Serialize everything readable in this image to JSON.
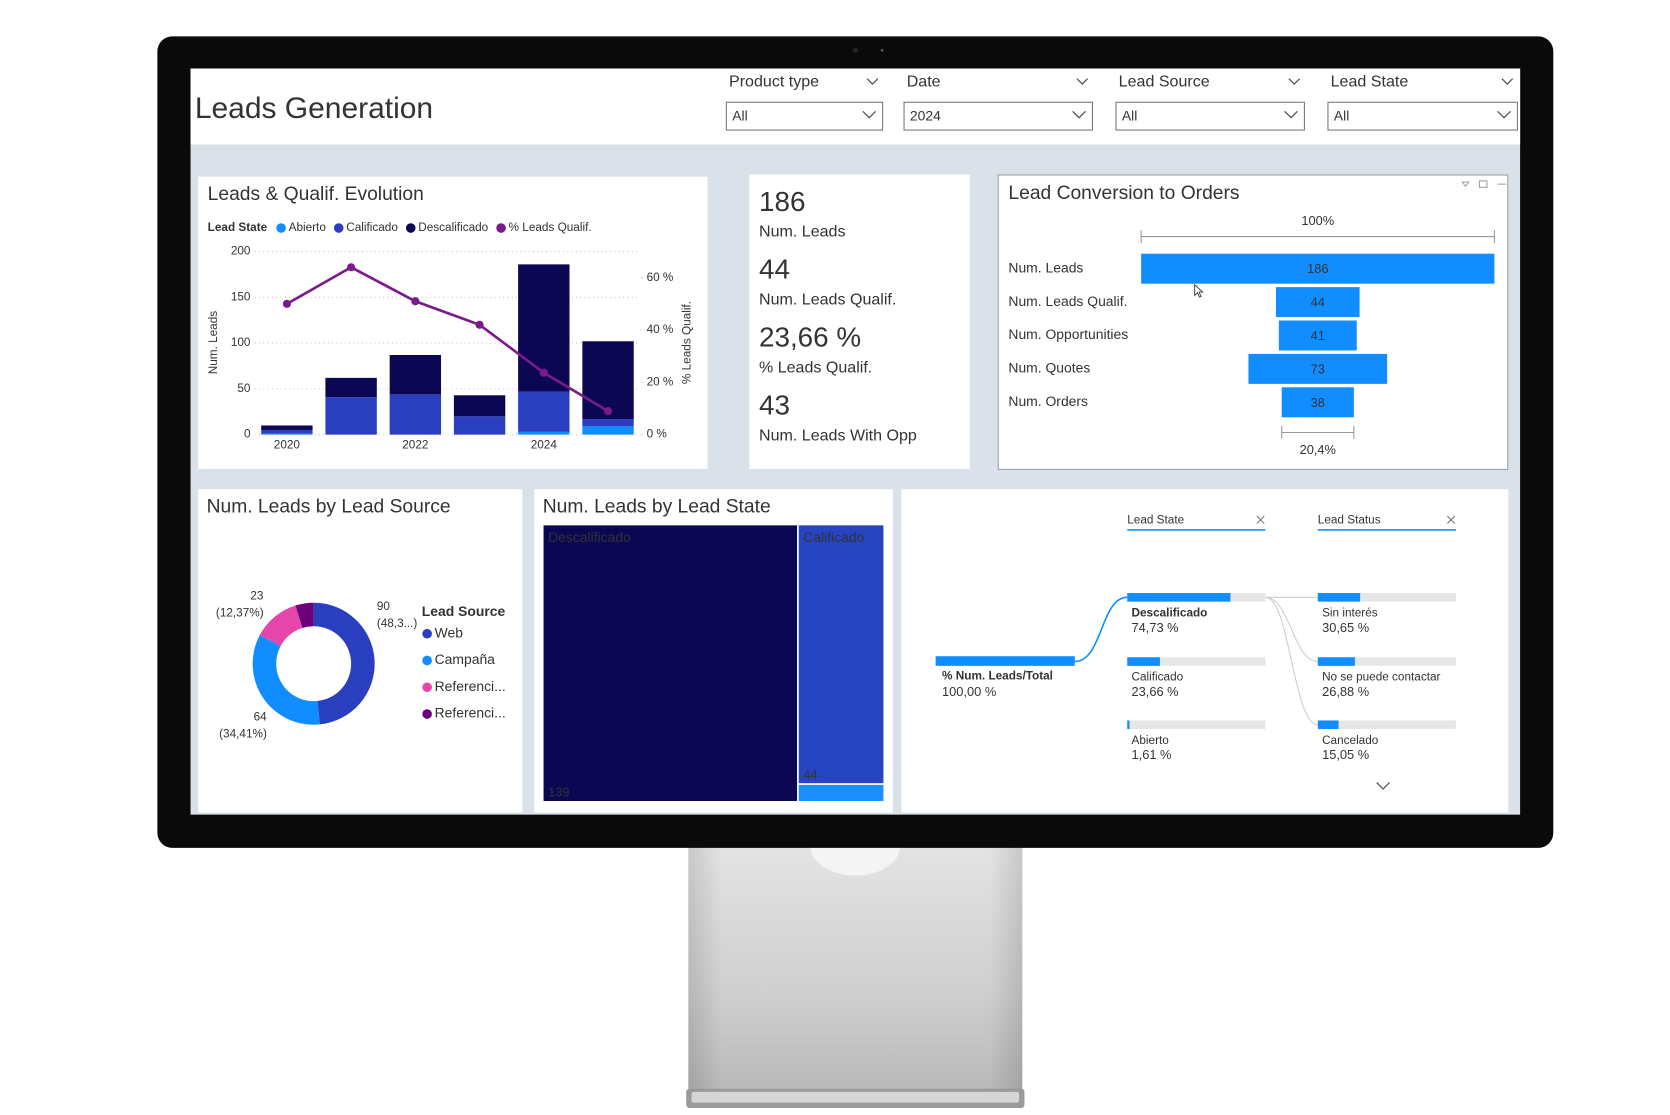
{
  "header": {
    "title": "Leads Generation"
  },
  "filters": [
    {
      "label": "Product type",
      "value": "All"
    },
    {
      "label": "Date",
      "value": "2024"
    },
    {
      "label": "Lead Source",
      "value": "All"
    },
    {
      "label": "Lead State",
      "value": "All"
    }
  ],
  "cards": [
    {
      "value": "186",
      "label": "Num. Leads"
    },
    {
      "value": "44",
      "label": "Num. Leads Qualif."
    },
    {
      "value": "23,66 %",
      "label": "% Leads Qualif."
    },
    {
      "value": "43",
      "label": "Num. Leads With Opp"
    }
  ],
  "chart_data": [
    {
      "type": "combo",
      "title": "Leads & Qualif. Evolution",
      "legend_title": "Lead State",
      "categories": [
        "2020",
        null,
        "2022",
        null,
        "2024",
        null
      ],
      "series": [
        {
          "name": "Abierto",
          "color": "#118dff",
          "values": [
            1,
            0,
            0,
            0,
            3,
            9
          ]
        },
        {
          "name": "Calificado",
          "color": "#2a3fbf",
          "values": [
            4,
            41,
            44,
            20,
            44,
            8
          ]
        },
        {
          "name": "Descalificado",
          "color": "#0c0752",
          "values": [
            5,
            21,
            43,
            23,
            139,
            85
          ]
        },
        {
          "name": "% Leads Qualif.",
          "color": "#7a1a8c",
          "axis": "y2",
          "values": [
            50,
            64,
            51,
            42,
            23.66,
            9
          ]
        }
      ],
      "ylabel": "Num. Leads",
      "y2label": "% Leads Qualif.",
      "ylim": [
        0,
        200
      ],
      "yticks": [
        0,
        50,
        100,
        150,
        200
      ],
      "y2lim": [
        0,
        70
      ],
      "y2ticks": [
        {
          "value": 0,
          "label": "0 %"
        },
        {
          "value": 20,
          "label": "20 %"
        },
        {
          "value": 40,
          "label": "40 %"
        },
        {
          "value": 60,
          "label": "60 %"
        }
      ],
      "grid": true
    },
    {
      "type": "funnel",
      "title": "Lead Conversion to Orders",
      "categories": [
        "Num. Leads",
        "Num. Leads Qualif.",
        "Num. Opportunities",
        "Num. Quotes",
        "Num. Orders"
      ],
      "values": [
        186,
        44,
        41,
        73,
        38
      ],
      "color": "#118dff",
      "top_label": "100%",
      "bottom_label": "20,4%"
    },
    {
      "type": "donut",
      "title": "Num. Leads by Lead Source",
      "legend_title": "Lead Source",
      "categories": [
        "Web",
        "Campaña",
        "Referenci...",
        "Referenci..."
      ],
      "values": [
        90,
        64,
        23,
        9
      ],
      "percent_labels": [
        "(48,3...)",
        "(34,41%)",
        "(12,37%)",
        null
      ],
      "colors": [
        "#2a3fbf",
        "#118dff",
        "#e645ab",
        "#6b007b"
      ]
    },
    {
      "type": "treemap",
      "title": "Num. Leads by Lead State",
      "categories": [
        "Descalificado",
        "Calificado",
        null
      ],
      "values": [
        139,
        44,
        3
      ],
      "colors": [
        "#0c0752",
        "#2744c2",
        "#1a8fff"
      ]
    },
    {
      "type": "decomposition",
      "levels": [
        "Lead State",
        "Lead Status"
      ],
      "root": {
        "name": "% Num. Leads/Total",
        "value": 100,
        "value_label": "100,00 %"
      },
      "nodes": [
        [
          {
            "name": "Descalificado",
            "value": 74.73,
            "value_label": "74,73 %"
          },
          {
            "name": "Calificado",
            "value": 23.66,
            "value_label": "23,66 %"
          },
          {
            "name": "Abierto",
            "value": 1.61,
            "value_label": "1,61 %"
          }
        ],
        [
          {
            "name": "Sin interés",
            "value": 30.65,
            "value_label": "30,65 %"
          },
          {
            "name": "No se puede contactar",
            "value": 26.88,
            "value_label": "26,88 %"
          },
          {
            "name": "Cancelado",
            "value": 15.05,
            "value_label": "15,05 %"
          }
        ]
      ],
      "color": "#118dff",
      "expanded_node": 0
    }
  ]
}
